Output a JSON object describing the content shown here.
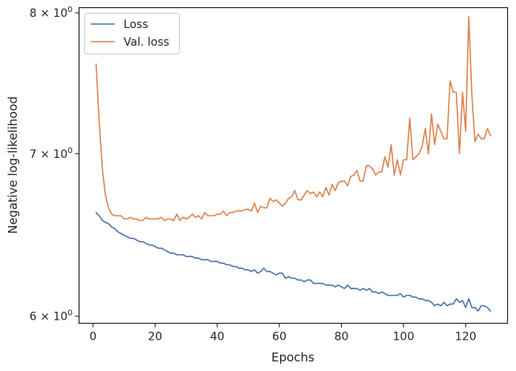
{
  "chart_data": {
    "type": "line",
    "xlabel": "Epochs",
    "ylabel": "Negative log-likelihood",
    "xlim": [
      -4.5,
      133.5
    ],
    "ylim": [
      5.96,
      8.04
    ],
    "yscale": "log",
    "grid": false,
    "legend_position": "top-left",
    "x_ticks": [
      0,
      20,
      40,
      60,
      80,
      100,
      120
    ],
    "x_tick_labels": [
      "0",
      "20",
      "40",
      "60",
      "80",
      "100",
      "120"
    ],
    "y_ticks": [
      {
        "value": 6,
        "base": "6",
        "mult": "×",
        "pow_base": "10",
        "exp": "0"
      },
      {
        "value": 7,
        "base": "7",
        "mult": "×",
        "pow_base": "10",
        "exp": "0"
      },
      {
        "value": 8,
        "base": "8",
        "mult": "×",
        "pow_base": "10",
        "exp": "0"
      }
    ],
    "series": [
      {
        "name": "Loss",
        "color": "#4c72b0",
        "x": [
          1,
          2,
          3,
          4,
          5,
          6,
          7,
          8,
          9,
          10,
          11,
          12,
          13,
          14,
          15,
          16,
          17,
          18,
          19,
          20,
          21,
          22,
          23,
          24,
          25,
          26,
          27,
          28,
          29,
          30,
          31,
          32,
          33,
          34,
          35,
          36,
          37,
          38,
          39,
          40,
          41,
          42,
          43,
          44,
          45,
          46,
          47,
          48,
          49,
          50,
          51,
          52,
          53,
          54,
          55,
          56,
          57,
          58,
          59,
          60,
          61,
          62,
          63,
          64,
          65,
          66,
          67,
          68,
          69,
          70,
          71,
          72,
          73,
          74,
          75,
          76,
          77,
          78,
          79,
          80,
          81,
          82,
          83,
          84,
          85,
          86,
          87,
          88,
          89,
          90,
          91,
          92,
          93,
          94,
          95,
          96,
          97,
          98,
          99,
          100,
          101,
          102,
          103,
          104,
          105,
          106,
          107,
          108,
          109,
          110,
          111,
          112,
          113,
          114,
          115,
          116,
          117,
          118,
          119,
          120,
          121,
          122,
          123,
          124,
          125,
          126,
          127,
          128
        ],
        "values": [
          6.62,
          6.6,
          6.57,
          6.56,
          6.55,
          6.53,
          6.52,
          6.5,
          6.49,
          6.48,
          6.47,
          6.46,
          6.46,
          6.45,
          6.44,
          6.44,
          6.43,
          6.42,
          6.42,
          6.41,
          6.4,
          6.4,
          6.39,
          6.38,
          6.37,
          6.37,
          6.36,
          6.36,
          6.36,
          6.35,
          6.35,
          6.35,
          6.34,
          6.34,
          6.33,
          6.33,
          6.33,
          6.32,
          6.32,
          6.32,
          6.31,
          6.31,
          6.3,
          6.3,
          6.29,
          6.29,
          6.28,
          6.28,
          6.27,
          6.27,
          6.26,
          6.27,
          6.25,
          6.26,
          6.28,
          6.26,
          6.26,
          6.25,
          6.24,
          6.25,
          6.25,
          6.22,
          6.23,
          6.22,
          6.22,
          6.21,
          6.21,
          6.2,
          6.21,
          6.21,
          6.19,
          6.19,
          6.19,
          6.19,
          6.18,
          6.18,
          6.18,
          6.17,
          6.18,
          6.17,
          6.16,
          6.18,
          6.16,
          6.16,
          6.16,
          6.15,
          6.16,
          6.15,
          6.16,
          6.14,
          6.14,
          6.13,
          6.14,
          6.13,
          6.12,
          6.12,
          6.12,
          6.12,
          6.13,
          6.11,
          6.12,
          6.12,
          6.11,
          6.11,
          6.1,
          6.1,
          6.09,
          6.09,
          6.08,
          6.06,
          6.07,
          6.06,
          6.08,
          6.06,
          6.07,
          6.07,
          6.1,
          6.08,
          6.09,
          6.05,
          6.1,
          6.05,
          6.05,
          6.03,
          6.06,
          6.06,
          6.05,
          6.03
        ]
      },
      {
        "name": "Val. loss",
        "color": "#dd8452",
        "x": [
          1,
          2,
          3,
          4,
          5,
          6,
          7,
          8,
          9,
          10,
          11,
          12,
          13,
          14,
          15,
          16,
          17,
          18,
          19,
          20,
          21,
          22,
          23,
          24,
          25,
          26,
          27,
          28,
          29,
          30,
          31,
          32,
          33,
          34,
          35,
          36,
          37,
          38,
          39,
          40,
          41,
          42,
          43,
          44,
          45,
          46,
          47,
          48,
          49,
          50,
          51,
          52,
          53,
          54,
          55,
          56,
          57,
          58,
          59,
          60,
          61,
          62,
          63,
          64,
          65,
          66,
          67,
          68,
          69,
          70,
          71,
          72,
          73,
          74,
          75,
          76,
          77,
          78,
          79,
          80,
          81,
          82,
          83,
          84,
          85,
          86,
          87,
          88,
          89,
          90,
          91,
          92,
          93,
          94,
          95,
          96,
          97,
          98,
          99,
          100,
          101,
          102,
          103,
          104,
          105,
          106,
          107,
          108,
          109,
          110,
          111,
          112,
          113,
          114,
          115,
          116,
          117,
          118,
          119,
          120,
          121,
          122,
          123,
          124,
          125,
          126,
          127,
          128
        ],
        "values": [
          7.62,
          7.21,
          6.9,
          6.73,
          6.65,
          6.61,
          6.6,
          6.6,
          6.6,
          6.58,
          6.58,
          6.59,
          6.58,
          6.58,
          6.57,
          6.57,
          6.59,
          6.58,
          6.58,
          6.58,
          6.58,
          6.59,
          6.57,
          6.58,
          6.58,
          6.57,
          6.61,
          6.57,
          6.59,
          6.58,
          6.59,
          6.61,
          6.59,
          6.6,
          6.58,
          6.62,
          6.6,
          6.6,
          6.6,
          6.61,
          6.61,
          6.63,
          6.6,
          6.62,
          6.62,
          6.63,
          6.63,
          6.63,
          6.64,
          6.64,
          6.63,
          6.68,
          6.62,
          6.66,
          6.65,
          6.65,
          6.71,
          6.69,
          6.7,
          6.68,
          6.66,
          6.68,
          6.71,
          6.72,
          6.76,
          6.7,
          6.7,
          6.73,
          6.76,
          6.74,
          6.75,
          6.72,
          6.75,
          6.72,
          6.78,
          6.73,
          6.8,
          6.76,
          6.81,
          6.82,
          6.82,
          6.79,
          6.85,
          6.86,
          6.89,
          6.82,
          6.82,
          6.92,
          6.92,
          6.9,
          6.86,
          6.88,
          6.88,
          6.98,
          6.91,
          7.06,
          6.86,
          6.96,
          6.86,
          6.96,
          6.96,
          7.24,
          6.96,
          6.98,
          7.0,
          7.05,
          7.17,
          7.0,
          7.27,
          7.06,
          7.2,
          7.15,
          7.1,
          7.1,
          7.5,
          7.42,
          7.42,
          7.0,
          7.42,
          7.15,
          7.97,
          7.4,
          7.08,
          7.13,
          7.1,
          7.1,
          7.17,
          7.12
        ]
      }
    ]
  }
}
